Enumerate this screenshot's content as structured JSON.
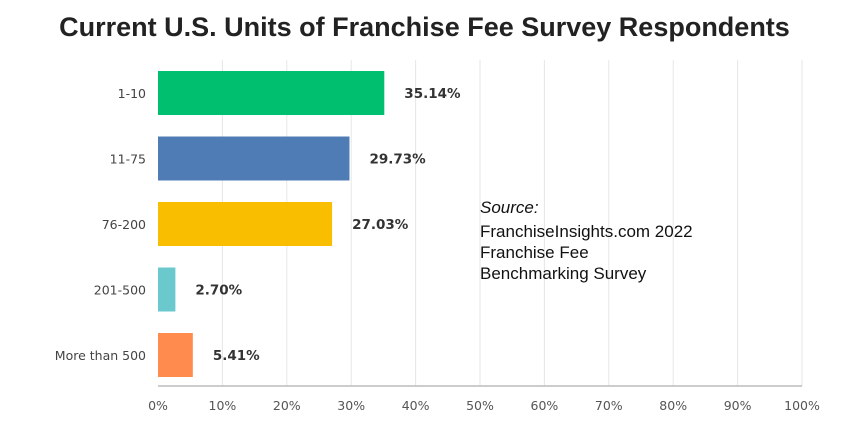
{
  "chart_data": {
    "type": "bar",
    "orientation": "horizontal",
    "title": "Current U.S. Units of Franchise Fee Survey Respondents",
    "categories": [
      "1-10",
      "11-75",
      "76-200",
      "201-500",
      "More than 500"
    ],
    "values": [
      35.14,
      29.73,
      27.03,
      2.7,
      5.41
    ],
    "value_labels": [
      "35.14%",
      "29.73%",
      "27.03%",
      "2.70%",
      "5.41%"
    ],
    "colors": [
      "#00BF6F",
      "#507CB6",
      "#F9BE00",
      "#6BC8CD",
      "#FF8B4F"
    ],
    "xlim": [
      0,
      100
    ],
    "xticks": [
      "0%",
      "10%",
      "20%",
      "30%",
      "40%",
      "50%",
      "60%",
      "70%",
      "80%",
      "90%",
      "100%"
    ],
    "xlabel": "",
    "ylabel": "",
    "grid": true
  },
  "source": {
    "label": "Source:",
    "lines": [
      "FranchiseInsights.com 2022",
      "Franchise Fee",
      "Benchmarking Survey"
    ]
  }
}
